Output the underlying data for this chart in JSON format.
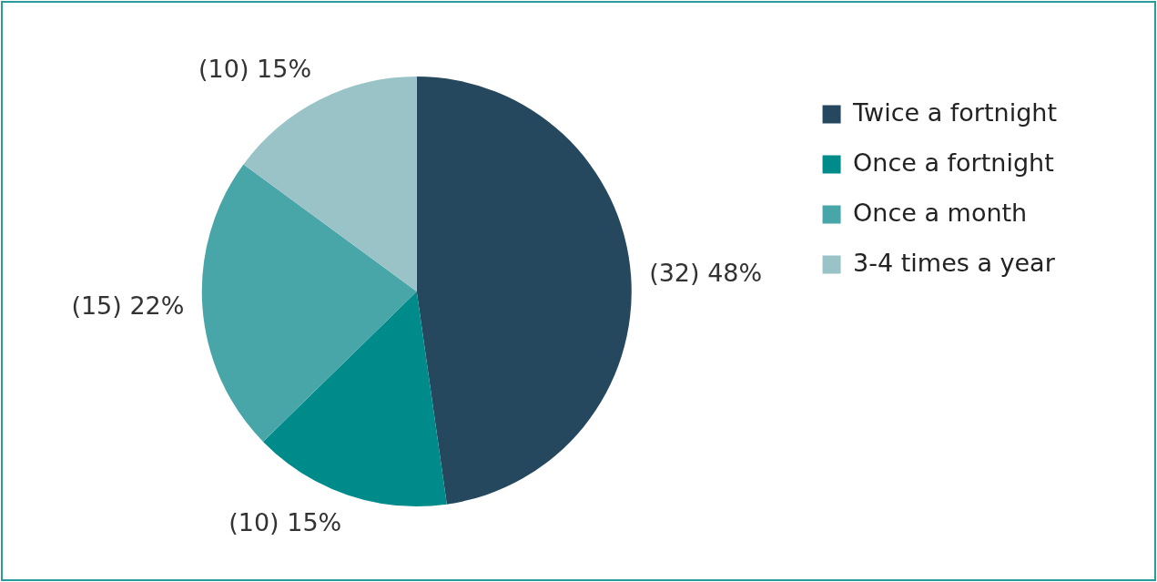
{
  "chart_data": {
    "type": "pie",
    "categories": [
      "Twice a fortnight",
      "Once a fortnight",
      "Once a month",
      "3-4 times a year"
    ],
    "values": [
      32,
      10,
      15,
      10
    ],
    "value_labels": [
      "(32) 48%",
      "(10) 15%",
      "(15) 22%",
      "(10) 15%"
    ],
    "colors": [
      "#25485f",
      "#008b8b",
      "#48a6a9",
      "#9ac3c8"
    ],
    "legend": "top right"
  }
}
